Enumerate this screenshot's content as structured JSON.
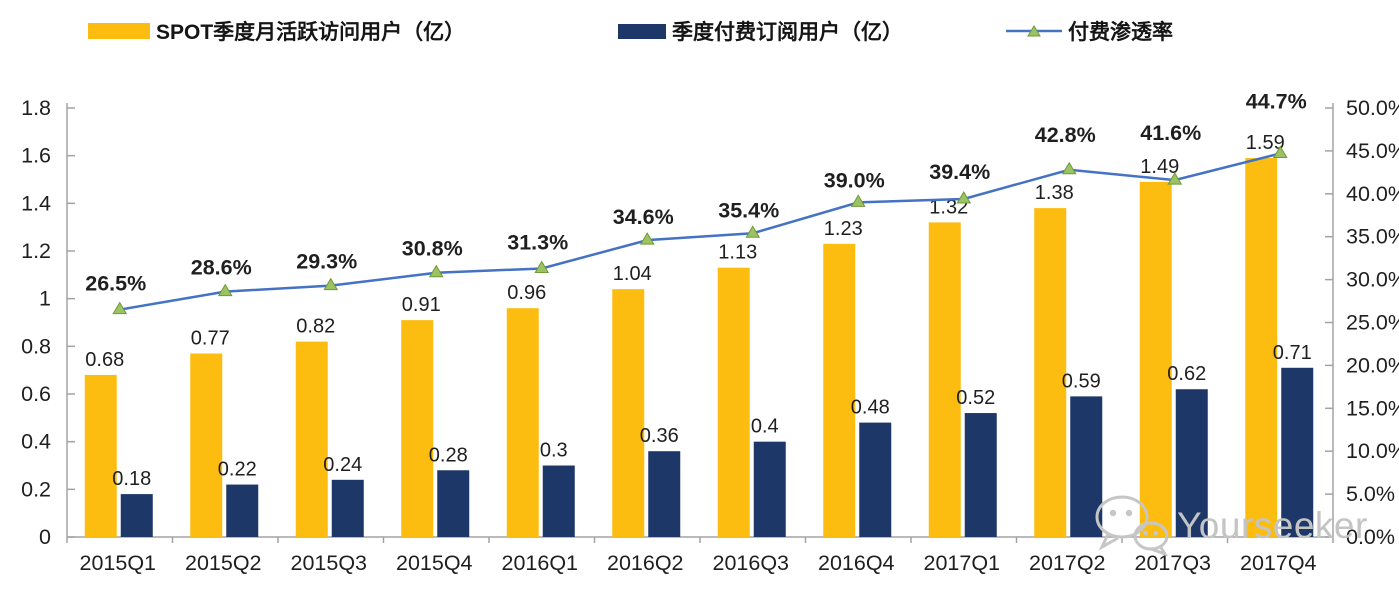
{
  "legend": {
    "items": [
      {
        "label": "SPOT季度月活跃访问用户（亿）"
      },
      {
        "label": "季度付费订阅用户（亿）"
      },
      {
        "label": "付费渗透率"
      }
    ]
  },
  "colors": {
    "mau_bar": "#FCBD10",
    "paid_bar": "#1C3768",
    "line": "#4472C4",
    "marker_fill": "#9CC263",
    "marker_stroke": "#6E9A38",
    "axis": "#A3A3A3",
    "text": "#1F1F1F",
    "watermark": "#C4C4C4"
  },
  "chart_data": {
    "type": "bar+line combo",
    "categories": [
      "2015Q1",
      "2015Q2",
      "2015Q3",
      "2015Q4",
      "2016Q1",
      "2016Q2",
      "2016Q3",
      "2016Q4",
      "2017Q1",
      "2017Q2",
      "2017Q3",
      "2017Q4"
    ],
    "series": [
      {
        "name": "SPOT季度月活跃访问用户（亿）",
        "type": "bar",
        "axis": "left",
        "values": [
          0.68,
          0.77,
          0.82,
          0.91,
          0.96,
          1.04,
          1.13,
          1.23,
          1.32,
          1.38,
          1.49,
          1.59
        ],
        "labels": [
          "0.68",
          "0.77",
          "0.82",
          "0.91",
          "0.96",
          "1.04",
          "1.13",
          "1.23",
          "1.32",
          "1.38",
          "1.49",
          "1.59"
        ]
      },
      {
        "name": "季度付费订阅用户（亿）",
        "type": "bar",
        "axis": "left",
        "values": [
          0.18,
          0.22,
          0.24,
          0.28,
          0.3,
          0.36,
          0.4,
          0.48,
          0.52,
          0.59,
          0.62,
          0.71
        ],
        "labels": [
          "0.18",
          "0.22",
          "0.24",
          "0.28",
          "0.3",
          "0.36",
          "0.4",
          "0.48",
          "0.52",
          "0.59",
          "0.62",
          "0.71"
        ]
      },
      {
        "name": "付费渗透率",
        "type": "line",
        "axis": "right",
        "values": [
          26.5,
          28.6,
          29.3,
          30.8,
          31.3,
          34.6,
          35.4,
          39.0,
          39.4,
          42.8,
          41.6,
          44.7
        ],
        "labels": [
          "26.5%",
          "28.6%",
          "29.3%",
          "30.8%",
          "31.3%",
          "34.6%",
          "35.4%",
          "39.0%",
          "39.4%",
          "42.8%",
          "41.6%",
          "44.7%"
        ]
      }
    ],
    "left_axis": {
      "min": 0,
      "max": 1.8,
      "step": 0.2,
      "tick_labels": [
        "0",
        "0.2",
        "0.4",
        "0.6",
        "0.8",
        "1",
        "1.2",
        "1.4",
        "1.6",
        "1.8"
      ]
    },
    "right_axis": {
      "min": 0,
      "max": 50,
      "step": 5,
      "tick_labels": [
        "0.0%",
        "5.0%",
        "10.0%",
        "15.0%",
        "20.0%",
        "25.0%",
        "30.0%",
        "35.0%",
        "40.0%",
        "45.0%",
        "50.0%"
      ]
    },
    "grid": false,
    "legend_position": "top"
  },
  "watermark": {
    "text": "Yourseeker",
    "icon": "wechat-icon"
  }
}
